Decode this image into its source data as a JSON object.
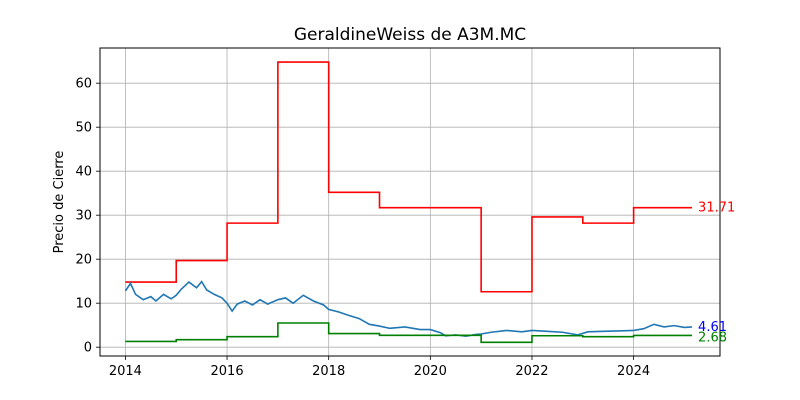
{
  "chart_data": {
    "type": "line",
    "title": "GeraldineWeiss de A3M.MC",
    "xlabel": "",
    "ylabel": "Precio de Cierre",
    "xlim": [
      2013.5,
      2025.7
    ],
    "ylim": [
      -2,
      68
    ],
    "x_ticks": [
      2014,
      2016,
      2018,
      2020,
      2022,
      2024
    ],
    "x_tick_labels": [
      "2014",
      "2016",
      "2018",
      "2020",
      "2022",
      "2024"
    ],
    "y_ticks": [
      0,
      10,
      20,
      30,
      40,
      50,
      60
    ],
    "y_tick_labels": [
      "0",
      "10",
      "20",
      "30",
      "40",
      "50",
      "60"
    ],
    "grid": true,
    "series": [
      {
        "color": "#ff0000",
        "step": true,
        "x": [
          2014,
          2015,
          2016,
          2017,
          2018,
          2019,
          2020,
          2021,
          2022,
          2023,
          2024,
          2025.15
        ],
        "values": [
          14.8,
          19.7,
          28.2,
          64.8,
          35.2,
          31.7,
          31.7,
          12.6,
          29.6,
          28.2,
          31.71,
          31.71
        ],
        "end_label": "31.71"
      },
      {
        "color": "#1f77b4",
        "step": false,
        "x": [
          2014.0,
          2014.1,
          2014.2,
          2014.35,
          2014.5,
          2014.6,
          2014.75,
          2014.9,
          2015.0,
          2015.1,
          2015.25,
          2015.4,
          2015.5,
          2015.6,
          2015.75,
          2015.9,
          2016.0,
          2016.1,
          2016.2,
          2016.35,
          2016.5,
          2016.65,
          2016.8,
          2017.0,
          2017.15,
          2017.3,
          2017.5,
          2017.7,
          2017.9,
          2018.0,
          2018.2,
          2018.4,
          2018.6,
          2018.8,
          2019.0,
          2019.2,
          2019.5,
          2019.8,
          2020.0,
          2020.2,
          2020.3,
          2020.5,
          2020.7,
          2020.9,
          2021.0,
          2021.2,
          2021.5,
          2021.8,
          2022.0,
          2022.3,
          2022.6,
          2022.9,
          2023.1,
          2023.4,
          2023.7,
          2024.0,
          2024.2,
          2024.4,
          2024.6,
          2024.8,
          2025.0,
          2025.15
        ],
        "values": [
          12.8,
          14.5,
          12.0,
          10.8,
          11.5,
          10.5,
          12.0,
          11.0,
          11.8,
          13.2,
          14.8,
          13.5,
          14.9,
          13.0,
          12.0,
          11.2,
          10.0,
          8.2,
          9.8,
          10.5,
          9.6,
          10.8,
          9.8,
          10.8,
          11.2,
          10.0,
          11.8,
          10.5,
          9.6,
          8.6,
          8.0,
          7.2,
          6.5,
          5.2,
          4.8,
          4.3,
          4.6,
          4.0,
          4.0,
          3.3,
          2.6,
          2.8,
          2.5,
          2.9,
          3.0,
          3.4,
          3.8,
          3.5,
          3.8,
          3.6,
          3.4,
          2.8,
          3.5,
          3.6,
          3.7,
          3.8,
          4.2,
          5.2,
          4.6,
          4.9,
          4.5,
          4.61
        ],
        "end_label": "4.61"
      },
      {
        "color": "#008000",
        "step": true,
        "x": [
          2014,
          2015,
          2016,
          2017,
          2018,
          2019,
          2020,
          2021,
          2022,
          2023,
          2024,
          2025.15
        ],
        "values": [
          1.3,
          1.7,
          2.4,
          5.5,
          3.1,
          2.7,
          2.7,
          1.1,
          2.6,
          2.4,
          2.68,
          2.68
        ],
        "end_label": "2.68"
      }
    ],
    "end_label_colors": [
      "#ff0000",
      "#0000ff",
      "#008000"
    ]
  }
}
